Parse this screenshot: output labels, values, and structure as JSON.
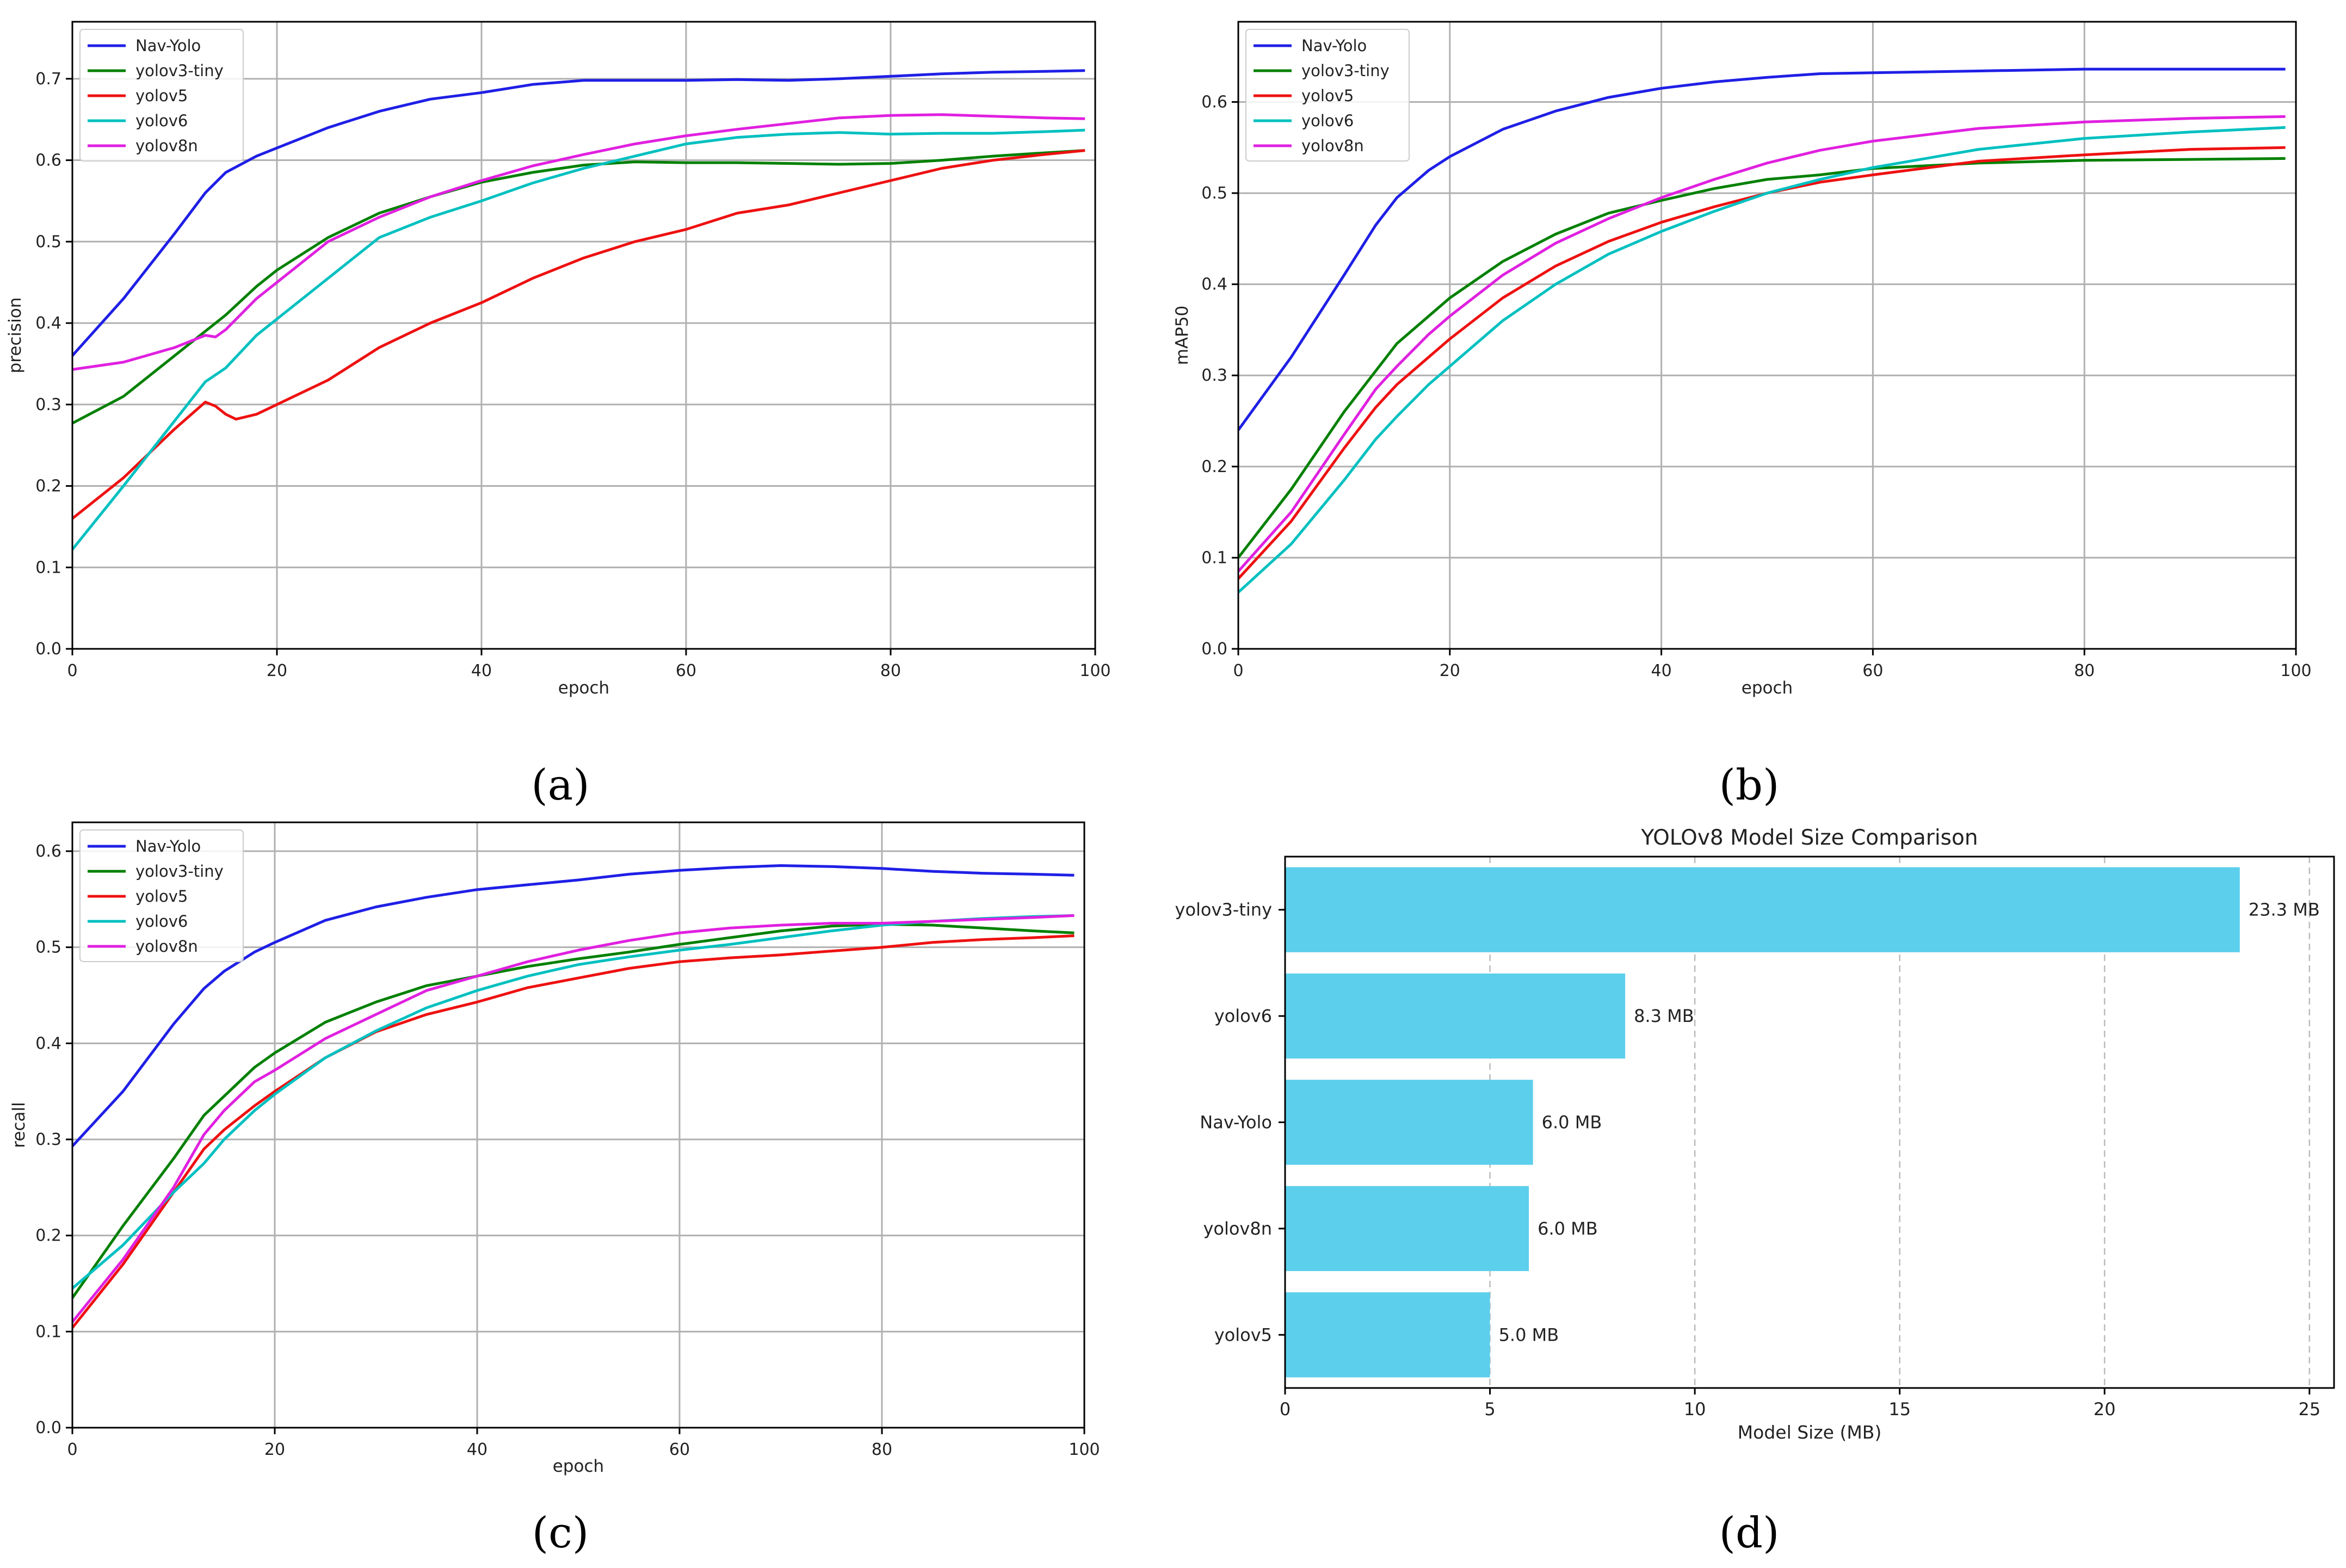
{
  "chart_data": [
    {
      "panel": "a",
      "caption": "(a)",
      "type": "line",
      "xlabel": "epoch",
      "ylabel": "precision",
      "xlim": [
        0,
        100
      ],
      "ylim": [
        0,
        0.77
      ],
      "xticks": [
        0,
        20,
        40,
        60,
        80,
        100
      ],
      "yticks": [
        0.0,
        0.1,
        0.2,
        0.3,
        0.4,
        0.5,
        0.6,
        0.7
      ],
      "ytick_format": 1,
      "grid": true,
      "legend": "top-left",
      "series": [
        {
          "name": "Nav-Yolo",
          "color": "#1f1fe6",
          "x": [
            0,
            5,
            10,
            13,
            15,
            18,
            20,
            25,
            30,
            35,
            40,
            45,
            50,
            55,
            60,
            65,
            70,
            75,
            80,
            85,
            90,
            95,
            99
          ],
          "y": [
            0.36,
            0.43,
            0.51,
            0.56,
            0.585,
            0.605,
            0.615,
            0.64,
            0.66,
            0.675,
            0.683,
            0.693,
            0.698,
            0.698,
            0.698,
            0.699,
            0.698,
            0.7,
            0.703,
            0.706,
            0.708,
            0.709,
            0.71
          ]
        },
        {
          "name": "yolov3-tiny",
          "color": "#008000",
          "x": [
            0,
            5,
            10,
            13,
            15,
            18,
            20,
            25,
            30,
            35,
            40,
            45,
            50,
            55,
            60,
            65,
            70,
            75,
            80,
            85,
            90,
            95,
            99
          ],
          "y": [
            0.277,
            0.31,
            0.36,
            0.39,
            0.41,
            0.445,
            0.465,
            0.505,
            0.535,
            0.555,
            0.573,
            0.585,
            0.594,
            0.598,
            0.597,
            0.597,
            0.596,
            0.595,
            0.596,
            0.6,
            0.605,
            0.609,
            0.612
          ]
        },
        {
          "name": "yolov5",
          "color": "#ee1111",
          "x": [
            0,
            5,
            10,
            13,
            14,
            15,
            16,
            18,
            20,
            25,
            30,
            35,
            40,
            45,
            50,
            55,
            60,
            65,
            70,
            75,
            80,
            85,
            90,
            95,
            99
          ],
          "y": [
            0.16,
            0.21,
            0.27,
            0.303,
            0.298,
            0.288,
            0.282,
            0.288,
            0.3,
            0.33,
            0.37,
            0.4,
            0.425,
            0.455,
            0.48,
            0.5,
            0.515,
            0.535,
            0.545,
            0.56,
            0.575,
            0.59,
            0.6,
            0.607,
            0.612
          ]
        },
        {
          "name": "yolov6",
          "color": "#00c0c0",
          "x": [
            0,
            5,
            10,
            13,
            15,
            18,
            20,
            25,
            30,
            35,
            40,
            45,
            50,
            55,
            60,
            65,
            70,
            75,
            80,
            85,
            90,
            95,
            99
          ],
          "y": [
            0.122,
            0.2,
            0.28,
            0.328,
            0.345,
            0.385,
            0.405,
            0.455,
            0.505,
            0.53,
            0.55,
            0.572,
            0.59,
            0.605,
            0.62,
            0.628,
            0.632,
            0.634,
            0.632,
            0.633,
            0.633,
            0.635,
            0.637
          ]
        },
        {
          "name": "yolov8n",
          "color": "#e020e0",
          "x": [
            0,
            5,
            10,
            13,
            14,
            15,
            18,
            20,
            25,
            30,
            35,
            40,
            45,
            50,
            55,
            60,
            65,
            70,
            75,
            80,
            85,
            90,
            95,
            99
          ],
          "y": [
            0.343,
            0.352,
            0.37,
            0.385,
            0.383,
            0.392,
            0.43,
            0.45,
            0.5,
            0.53,
            0.555,
            0.575,
            0.593,
            0.607,
            0.62,
            0.63,
            0.638,
            0.645,
            0.652,
            0.655,
            0.656,
            0.654,
            0.652,
            0.651
          ]
        }
      ]
    },
    {
      "panel": "b",
      "caption": "(b)",
      "type": "line",
      "xlabel": "epoch",
      "ylabel": "mAP50",
      "xlim": [
        0,
        100
      ],
      "ylim": [
        0,
        0.688
      ],
      "xticks": [
        0,
        20,
        40,
        60,
        80,
        100
      ],
      "yticks": [
        0.0,
        0.1,
        0.2,
        0.3,
        0.4,
        0.5,
        0.6
      ],
      "ytick_format": 1,
      "grid": true,
      "legend": "top-left",
      "series": [
        {
          "name": "Nav-Yolo",
          "color": "#1f1fe6",
          "x": [
            0,
            5,
            10,
            13,
            15,
            18,
            20,
            25,
            30,
            35,
            40,
            45,
            50,
            55,
            60,
            70,
            80,
            90,
            99
          ],
          "y": [
            0.24,
            0.32,
            0.41,
            0.465,
            0.495,
            0.525,
            0.54,
            0.57,
            0.59,
            0.605,
            0.615,
            0.622,
            0.627,
            0.631,
            0.632,
            0.634,
            0.636,
            0.636,
            0.636
          ]
        },
        {
          "name": "yolov3-tiny",
          "color": "#008000",
          "x": [
            0,
            5,
            10,
            13,
            15,
            18,
            20,
            25,
            30,
            35,
            40,
            45,
            50,
            55,
            60,
            70,
            80,
            90,
            99
          ],
          "y": [
            0.1,
            0.175,
            0.26,
            0.305,
            0.335,
            0.365,
            0.385,
            0.425,
            0.455,
            0.478,
            0.492,
            0.505,
            0.515,
            0.52,
            0.527,
            0.533,
            0.536,
            0.537,
            0.538
          ]
        },
        {
          "name": "yolov5",
          "color": "#ee1111",
          "x": [
            0,
            5,
            10,
            13,
            15,
            18,
            20,
            25,
            30,
            35,
            40,
            45,
            50,
            55,
            60,
            70,
            80,
            90,
            99
          ],
          "y": [
            0.077,
            0.14,
            0.22,
            0.265,
            0.29,
            0.32,
            0.34,
            0.385,
            0.42,
            0.447,
            0.468,
            0.485,
            0.5,
            0.512,
            0.52,
            0.535,
            0.542,
            0.548,
            0.55
          ]
        },
        {
          "name": "yolov6",
          "color": "#00c0c0",
          "x": [
            0,
            5,
            10,
            13,
            15,
            18,
            20,
            25,
            30,
            35,
            40,
            45,
            50,
            55,
            60,
            70,
            80,
            90,
            99
          ],
          "y": [
            0.062,
            0.115,
            0.185,
            0.23,
            0.255,
            0.29,
            0.31,
            0.36,
            0.4,
            0.433,
            0.458,
            0.48,
            0.5,
            0.515,
            0.528,
            0.548,
            0.56,
            0.567,
            0.572
          ]
        },
        {
          "name": "yolov8n",
          "color": "#e020e0",
          "x": [
            0,
            5,
            10,
            13,
            15,
            18,
            20,
            25,
            30,
            35,
            40,
            45,
            50,
            55,
            60,
            70,
            80,
            90,
            99
          ],
          "y": [
            0.085,
            0.15,
            0.235,
            0.285,
            0.31,
            0.345,
            0.365,
            0.41,
            0.445,
            0.472,
            0.495,
            0.515,
            0.533,
            0.547,
            0.557,
            0.571,
            0.578,
            0.582,
            0.584
          ]
        }
      ]
    },
    {
      "panel": "c",
      "caption": "(c)",
      "type": "line",
      "xlabel": "epoch",
      "ylabel": "recall",
      "xlim": [
        0,
        100
      ],
      "ylim": [
        0,
        0.63
      ],
      "xticks": [
        0,
        20,
        40,
        60,
        80,
        100
      ],
      "yticks": [
        0.0,
        0.1,
        0.2,
        0.3,
        0.4,
        0.5,
        0.6
      ],
      "ytick_format": 1,
      "grid": true,
      "legend": "top-left",
      "series": [
        {
          "name": "Nav-Yolo",
          "color": "#1f1fe6",
          "x": [
            0,
            5,
            10,
            13,
            15,
            18,
            20,
            25,
            30,
            35,
            40,
            45,
            50,
            55,
            60,
            65,
            70,
            75,
            80,
            85,
            90,
            95,
            99
          ],
          "y": [
            0.293,
            0.35,
            0.42,
            0.457,
            0.475,
            0.495,
            0.505,
            0.528,
            0.542,
            0.552,
            0.56,
            0.565,
            0.57,
            0.576,
            0.58,
            0.583,
            0.585,
            0.584,
            0.582,
            0.579,
            0.577,
            0.576,
            0.575
          ]
        },
        {
          "name": "yolov3-tiny",
          "color": "#008000",
          "x": [
            0,
            5,
            10,
            13,
            15,
            18,
            20,
            25,
            30,
            35,
            40,
            45,
            50,
            55,
            60,
            65,
            70,
            75,
            80,
            85,
            90,
            95,
            99
          ],
          "y": [
            0.135,
            0.21,
            0.28,
            0.325,
            0.345,
            0.375,
            0.39,
            0.422,
            0.443,
            0.46,
            0.47,
            0.48,
            0.488,
            0.495,
            0.503,
            0.51,
            0.517,
            0.522,
            0.524,
            0.523,
            0.52,
            0.517,
            0.515
          ]
        },
        {
          "name": "yolov5",
          "color": "#ee1111",
          "x": [
            0,
            5,
            10,
            13,
            15,
            18,
            20,
            25,
            30,
            35,
            40,
            45,
            50,
            55,
            60,
            65,
            70,
            75,
            80,
            85,
            90,
            95,
            99
          ],
          "y": [
            0.104,
            0.17,
            0.245,
            0.29,
            0.31,
            0.335,
            0.35,
            0.385,
            0.412,
            0.43,
            0.443,
            0.458,
            0.468,
            0.478,
            0.485,
            0.489,
            0.492,
            0.496,
            0.5,
            0.505,
            0.508,
            0.51,
            0.512
          ]
        },
        {
          "name": "yolov6",
          "color": "#00c0c0",
          "x": [
            0,
            5,
            10,
            13,
            15,
            18,
            20,
            25,
            30,
            35,
            40,
            45,
            50,
            55,
            60,
            65,
            70,
            75,
            80,
            85,
            90,
            95,
            99
          ],
          "y": [
            0.145,
            0.19,
            0.245,
            0.275,
            0.3,
            0.33,
            0.347,
            0.385,
            0.413,
            0.437,
            0.455,
            0.47,
            0.482,
            0.49,
            0.497,
            0.503,
            0.51,
            0.517,
            0.523,
            0.527,
            0.53,
            0.532,
            0.533
          ]
        },
        {
          "name": "yolov8n",
          "color": "#e020e0",
          "x": [
            0,
            5,
            10,
            13,
            15,
            18,
            20,
            25,
            30,
            35,
            40,
            45,
            50,
            55,
            60,
            65,
            70,
            75,
            80,
            85,
            90,
            95,
            99
          ],
          "y": [
            0.11,
            0.175,
            0.25,
            0.305,
            0.33,
            0.36,
            0.372,
            0.405,
            0.43,
            0.455,
            0.47,
            0.485,
            0.497,
            0.507,
            0.515,
            0.52,
            0.523,
            0.525,
            0.525,
            0.527,
            0.529,
            0.531,
            0.533
          ]
        }
      ]
    },
    {
      "panel": "d",
      "caption": "(d)",
      "type": "bar",
      "orientation": "horizontal",
      "title": "YOLOv8 Model Size Comparison",
      "xlabel": "Model Size (MB)",
      "ylabel": "",
      "xlim": [
        0,
        25.6
      ],
      "xticks": [
        0,
        5,
        10,
        15,
        20,
        25
      ],
      "grid": "x-dashed",
      "bar_color": "#5bcfec",
      "categories": [
        "yolov3-tiny",
        "yolov6",
        "Nav-Yolo",
        "yolov8n",
        "yolov5"
      ],
      "values": [
        23.3,
        8.3,
        6.05,
        5.95,
        5.0
      ],
      "labels": [
        "23.3 MB",
        "8.3 MB",
        "6.0 MB",
        "6.0 MB",
        "5.0 MB"
      ]
    }
  ]
}
